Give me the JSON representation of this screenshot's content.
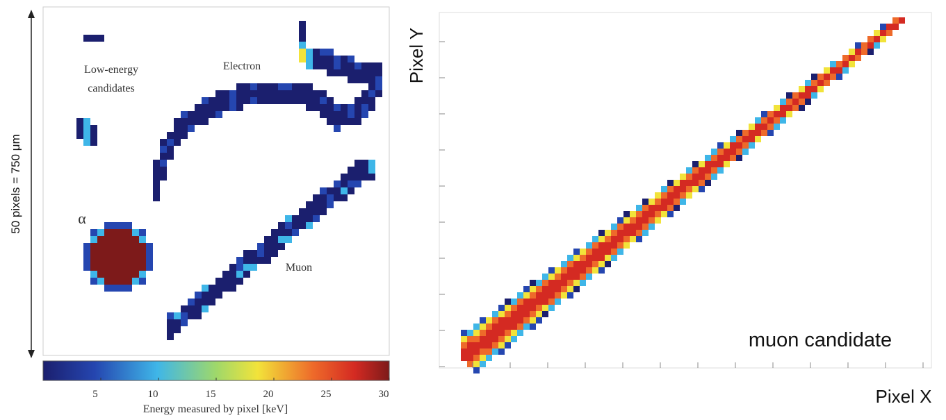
{
  "left_panel": {
    "scale_label": "50 pixels = 750 μm",
    "low_energy_lines": [
      "Low-energy",
      "candidates"
    ],
    "electron_label": "Electron",
    "alpha_label": "α",
    "muon_label": "Muon",
    "colorbar": {
      "label": "Energy measured by pixel [keV]",
      "lim": [
        0,
        30
      ],
      "ticks": [
        5,
        10,
        15,
        20,
        25,
        30
      ]
    }
  },
  "right_panel": {
    "y_label": "Pixel Y",
    "x_label": "Pixel X",
    "annotation": "muon candidate"
  }
}
